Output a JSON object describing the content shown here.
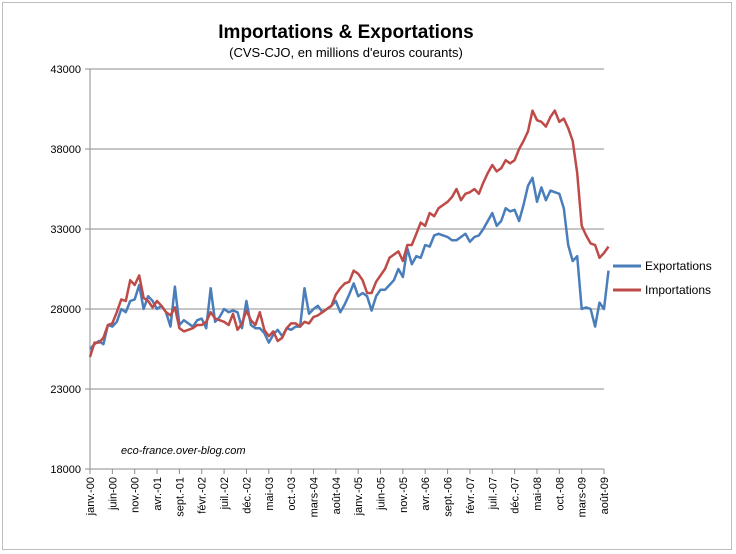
{
  "chart_data": {
    "type": "line",
    "title": "Importations  & Exportations",
    "subtitle": "(CVS-CJO, en millions d'euros courants)",
    "watermark": "eco-france.over-blog.com",
    "ylim": [
      18000,
      43000
    ],
    "yticks": [
      18000,
      23000,
      28000,
      33000,
      38000,
      43000
    ],
    "ytick_labels": [
      "18000",
      "23000",
      "28000",
      "33000",
      "38000",
      "43000"
    ],
    "grid": "horizontal",
    "legend": "right",
    "xlim": [
      0,
      115
    ],
    "xtick_positions": [
      0,
      5,
      10,
      15,
      20,
      25,
      30,
      35,
      40,
      45,
      50,
      55,
      60,
      65,
      70,
      75,
      80,
      85,
      90,
      95,
      100,
      105,
      110,
      115
    ],
    "xtick_labels": [
      "janv.-00",
      "juin-00",
      "nov.-00",
      "avr.-01",
      "sept.-01",
      "févr.-02",
      "juil.-02",
      "déc.-02",
      "mai-03",
      "oct.-03",
      "mars-04",
      "août-04",
      "janv.-05",
      "juin-05",
      "nov.-05",
      "avr.-06",
      "sept.-06",
      "févr.-07",
      "juil.-07",
      "déc.-07",
      "mai-08",
      "oct.-08",
      "mars-09",
      "août-09"
    ],
    "series": [
      {
        "name": "Exportations",
        "color": "#4a7ebb",
        "values": [
          25500,
          25800,
          26000,
          25800,
          27000,
          26900,
          27200,
          28000,
          27800,
          28500,
          28600,
          29500,
          28000,
          28800,
          28500,
          28000,
          28200,
          27800,
          26900,
          29400,
          27000,
          27300,
          27100,
          26900,
          27300,
          27400,
          26800,
          29300,
          27200,
          27500,
          28000,
          27800,
          27900,
          27800,
          26800,
          28500,
          27000,
          26800,
          26800,
          26500,
          25900,
          26400,
          26700,
          26300,
          26800,
          26700,
          26900,
          26900,
          29300,
          27700,
          28000,
          28200,
          27800,
          28000,
          28200,
          28500,
          27800,
          28300,
          28900,
          29600,
          28800,
          29000,
          28800,
          27900,
          28800,
          29200,
          29200,
          29500,
          29800,
          30500,
          30000,
          31800,
          30800,
          31300,
          31200,
          32000,
          31900,
          32600,
          32700,
          32600,
          32500,
          32300,
          32300,
          32500,
          32700,
          32200,
          32500,
          32600,
          33000,
          33500,
          34000,
          33200,
          33500,
          34300,
          34100,
          34200,
          33500,
          34500,
          35700,
          36200,
          34700,
          35600,
          34800,
          35400,
          35300,
          35200,
          34300,
          32000,
          31000,
          31300,
          28000,
          28100,
          28000,
          26900,
          28400,
          28000,
          30400
        ]
      },
      {
        "name": "Importations",
        "color": "#be4b48",
        "values": [
          25000,
          25900,
          25900,
          26200,
          27000,
          27100,
          27800,
          28600,
          28500,
          29800,
          29500,
          30100,
          28700,
          28500,
          28100,
          28500,
          28200,
          27800,
          27600,
          28100,
          26800,
          26600,
          26700,
          26800,
          27000,
          27000,
          27200,
          27800,
          27400,
          27300,
          27200,
          27000,
          27700,
          26700,
          27100,
          27900,
          27300,
          27000,
          27800,
          26700,
          26300,
          26600,
          26000,
          26200,
          26800,
          27100,
          27100,
          26900,
          27200,
          27100,
          27500,
          27600,
          27800,
          28000,
          28200,
          28900,
          29300,
          29600,
          29700,
          30400,
          30200,
          29800,
          29000,
          29000,
          29700,
          30100,
          30500,
          31200,
          31400,
          31600,
          31000,
          32000,
          32000,
          32700,
          33400,
          33200,
          34000,
          33800,
          34300,
          34500,
          34700,
          35000,
          35500,
          34800,
          35200,
          35300,
          35500,
          35200,
          35900,
          36500,
          37000,
          36600,
          36800,
          37300,
          37100,
          37300,
          38000,
          38500,
          39100,
          40400,
          39800,
          39700,
          39400,
          40000,
          40400,
          39700,
          39900,
          39300,
          38500,
          36500,
          33200,
          32600,
          32100,
          32000,
          31200,
          31500,
          31900
        ]
      }
    ]
  }
}
